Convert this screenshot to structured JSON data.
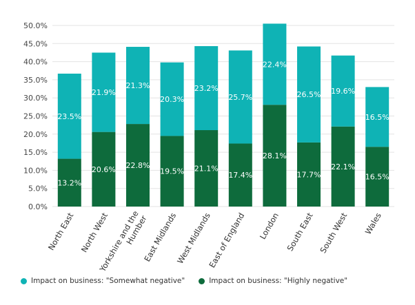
{
  "chart_data": {
    "type": "bar",
    "stacked": true,
    "categories": [
      "North East",
      "North West",
      "Yorkshire and the Humber",
      "East Midlands",
      "West Midlands",
      "East of England",
      "London",
      "South East",
      "South West",
      "Wales"
    ],
    "series": [
      {
        "name": "Impact on business: \"Highly negative\"",
        "color": "#0e6b3c",
        "values": [
          13.2,
          20.6,
          22.8,
          19.5,
          21.1,
          17.4,
          28.1,
          17.7,
          22.1,
          16.5
        ],
        "labels": [
          "13.2%",
          "20.6%",
          "22.8%",
          "19.5%",
          "21.1%",
          "17.4%",
          "28.1%",
          "17.7%",
          "22.1%",
          "16.5%"
        ]
      },
      {
        "name": "Impact on business: \"Somewhat negative\"",
        "color": "#0fb3b5",
        "values": [
          23.5,
          21.9,
          21.3,
          20.3,
          23.2,
          25.7,
          22.4,
          26.5,
          19.6,
          16.5
        ],
        "labels": [
          "23.5%",
          "21.9%",
          "21.3%",
          "20.3%",
          "23.2%",
          "25.7%",
          "22.4%",
          "26.5%",
          "19.6%",
          "16.5%"
        ]
      }
    ],
    "ylim": [
      0,
      50
    ],
    "yticks": [
      0,
      5,
      10,
      15,
      20,
      25,
      30,
      35,
      40,
      45,
      50
    ],
    "ytick_labels": [
      "0.0%",
      "5.0%",
      "10.0%",
      "15.0%",
      "20.0%",
      "25.0%",
      "30.0%",
      "35.0%",
      "40.0%",
      "45.0%",
      "50.0%"
    ],
    "grid": true,
    "legend_position": "bottom-left"
  },
  "legend": [
    {
      "label": "Impact on business: \"Somewhat negative\"",
      "color": "#0fb3b5"
    },
    {
      "label": "Impact on business: \"Highly negative\"",
      "color": "#0e6b3c"
    }
  ]
}
